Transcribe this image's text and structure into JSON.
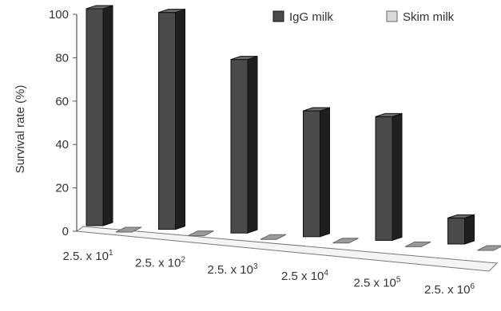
{
  "colors": {
    "igg_front": "#4a4a4a",
    "igg_side": "#1f1f1f",
    "igg_top": "#6a6a6a",
    "skim_fill": "#9a9a9a",
    "skim_top": "#bdbdbd",
    "axis": "#555555",
    "text": "#333333"
  },
  "chart_data": {
    "type": "bar",
    "title": "",
    "xlabel": "",
    "ylabel": "Survival rate (%)",
    "ylim": [
      0,
      100
    ],
    "yticks": [
      0,
      20,
      40,
      60,
      80,
      100
    ],
    "grid": false,
    "legend_position": "top-right",
    "categories": [
      {
        "base": "2.5. x 10",
        "exp": "1"
      },
      {
        "base": "2.5. x 10",
        "exp": "2"
      },
      {
        "base": "2.5. x 10",
        "exp": "3"
      },
      {
        "base": "2.5 x 10",
        "exp": "4"
      },
      {
        "base": "2.5 x 10",
        "exp": "5"
      },
      {
        "base": "2.5. x 10",
        "exp": "6"
      }
    ],
    "series": [
      {
        "name": "IgG milk",
        "values": [
          100,
          100,
          80,
          58,
          57,
          12
        ]
      },
      {
        "name": "Skim milk",
        "values": [
          0,
          0,
          0,
          0,
          0,
          0
        ]
      }
    ]
  }
}
